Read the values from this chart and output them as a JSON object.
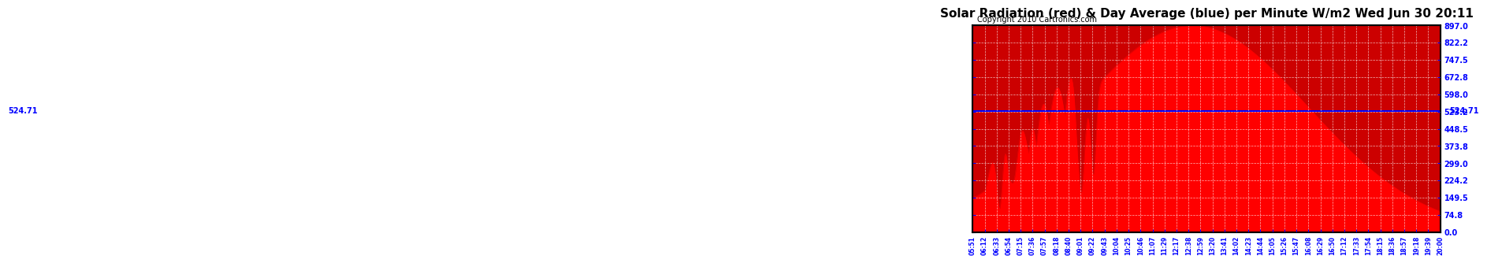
{
  "title": "Solar Radiation (red) & Day Average (blue) per Minute W/m2 Wed Jun 30 20:11",
  "copyright": "Copyright 2010 Cartronics.com",
  "day_average": 524.71,
  "y_max": 897.0,
  "y_min": 0.0,
  "y_ticks": [
    0.0,
    74.8,
    149.5,
    224.2,
    299.0,
    373.8,
    448.5,
    523.2,
    598.0,
    672.8,
    747.5,
    822.2,
    897.0
  ],
  "y_tick_labels_right": [
    "897.0",
    "822.2",
    "747.5",
    "672.8",
    "598.0",
    "523.2",
    "448.5",
    "373.8",
    "299.0",
    "224.2",
    "149.5",
    "74.8",
    "0.0"
  ],
  "x_tick_labels": [
    "05:51",
    "06:12",
    "06:33",
    "06:54",
    "07:15",
    "07:36",
    "07:57",
    "08:18",
    "08:40",
    "09:01",
    "09:22",
    "09:43",
    "10:04",
    "10:25",
    "10:46",
    "11:07",
    "11:29",
    "12:17",
    "12:38",
    "12:59",
    "13:20",
    "13:41",
    "14:02",
    "14:23",
    "14:44",
    "15:05",
    "15:26",
    "15:47",
    "16:08",
    "16:29",
    "16:50",
    "17:12",
    "17:33",
    "17:54",
    "18:15",
    "18:36",
    "18:57",
    "19:18",
    "19:39",
    "20:00"
  ],
  "fill_color": "#FF0000",
  "line_color": "#0000FF",
  "bg_color": "#FF0000",
  "plot_bg": "#CC0000",
  "grid_color": "#FFFFFF",
  "title_fontsize": 11,
  "copyright_fontsize": 7,
  "annotation_color": "#0000FF",
  "annotation_text": "524.71",
  "left_annotation": "524:71",
  "right_annotation": "524:71"
}
